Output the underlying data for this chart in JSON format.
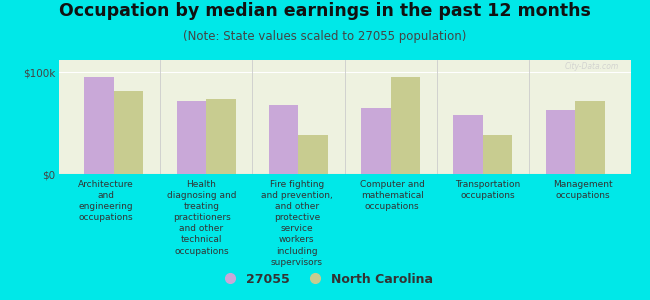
{
  "title": "Occupation by median earnings in the past 12 months",
  "subtitle": "(Note: State values scaled to 27055 population)",
  "background_color": "#00e8e8",
  "plot_bg_color": "#eef2e0",
  "categories": [
    "Architecture\nand\nengineering\noccupations",
    "Health\ndiagnosing and\ntreating\npractitioners\nand other\ntechnical\noccupations",
    "Fire fighting\nand prevention,\nand other\nprotective\nservice\nworkers\nincluding\nsupervisors",
    "Computer and\nmathematical\noccupations",
    "Transportation\noccupations",
    "Management\noccupations"
  ],
  "values_27055": [
    95000,
    72000,
    68000,
    65000,
    58000,
    63000
  ],
  "values_nc": [
    82000,
    74000,
    38000,
    95000,
    38000,
    72000
  ],
  "color_27055": "#c9a8d8",
  "color_nc": "#c8cc90",
  "legend_27055": "27055",
  "legend_nc": "North Carolina",
  "yticks": [
    0,
    100000
  ],
  "ytick_labels": [
    "$0",
    "$100k"
  ],
  "ylim": [
    0,
    112000
  ],
  "bar_width": 0.32,
  "title_fontsize": 12.5,
  "subtitle_fontsize": 8.5,
  "tick_fontsize": 7.5,
  "label_fontsize": 6.5
}
